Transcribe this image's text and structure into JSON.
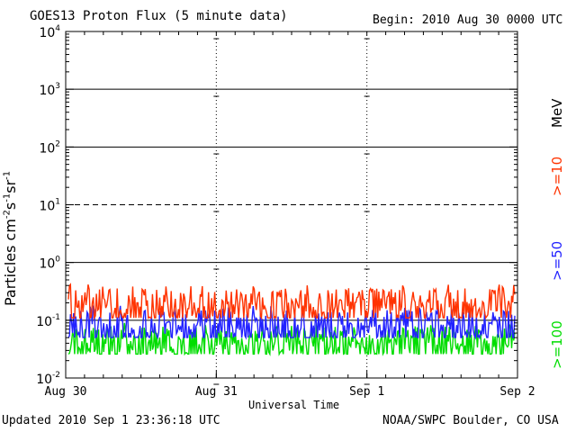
{
  "header": {
    "title": "GOES13 Proton Flux (5 minute data)",
    "begin": "Begin: 2010 Aug 30 0000 UTC"
  },
  "footer": {
    "updated": "Updated 2010 Sep  1 23:36:18 UTC",
    "credit": "NOAA/SWPC Boulder, CO USA"
  },
  "legend": {
    "unit": "MeV",
    "items": [
      {
        "label": ">=10",
        "color": "#ff3300"
      },
      {
        "label": ">=50",
        "color": "#2222ff"
      },
      {
        "label": ">=100",
        "color": "#00dd00"
      }
    ]
  },
  "chart_data": {
    "type": "line",
    "title": "GOES13 Proton Flux (5 minute data)",
    "xlabel": "Universal Time",
    "ylabel_parts": [
      "Particles cm",
      "-2",
      "s",
      "-1",
      "sr",
      "-1"
    ],
    "yscale": "log",
    "ylim": [
      0.01,
      10000
    ],
    "yticks": [
      {
        "value": 0.01,
        "base": "10",
        "exp": "-2"
      },
      {
        "value": 0.1,
        "base": "10",
        "exp": "-1"
      },
      {
        "value": 1,
        "base": "10",
        "exp": "0"
      },
      {
        "value": 10,
        "base": "10",
        "exp": "1"
      },
      {
        "value": 100,
        "base": "10",
        "exp": "2"
      },
      {
        "value": 1000,
        "base": "10",
        "exp": "3"
      },
      {
        "value": 10000,
        "base": "10",
        "exp": "4"
      }
    ],
    "xlim": [
      "2010-08-30",
      "2010-09-02"
    ],
    "xticks": [
      {
        "value": "2010-08-30",
        "label": "Aug 30"
      },
      {
        "value": "2010-08-31",
        "label": "Aug 31"
      },
      {
        "value": "2010-09-01",
        "label": "Sep 1"
      },
      {
        "value": "2010-09-02",
        "label": "Sep 2"
      }
    ],
    "threshold_lines": [
      {
        "value": 10,
        "style": "dashed"
      },
      {
        "value": 1,
        "style": "solid"
      },
      {
        "value": 100,
        "style": "solid"
      },
      {
        "value": 1000,
        "style": "solid"
      },
      {
        "value": 0.1,
        "style": "solid"
      }
    ],
    "series": [
      {
        "name": ">=10 MeV",
        "color": "#ff3300",
        "typical": 0.18,
        "low": 0.11,
        "high": 0.42
      },
      {
        "name": ">=50 MeV",
        "color": "#2222ff",
        "typical": 0.075,
        "low": 0.05,
        "high": 0.18
      },
      {
        "name": ">=100 MeV",
        "color": "#00dd00",
        "typical": 0.04,
        "low": 0.026,
        "high": 0.09
      }
    ]
  }
}
